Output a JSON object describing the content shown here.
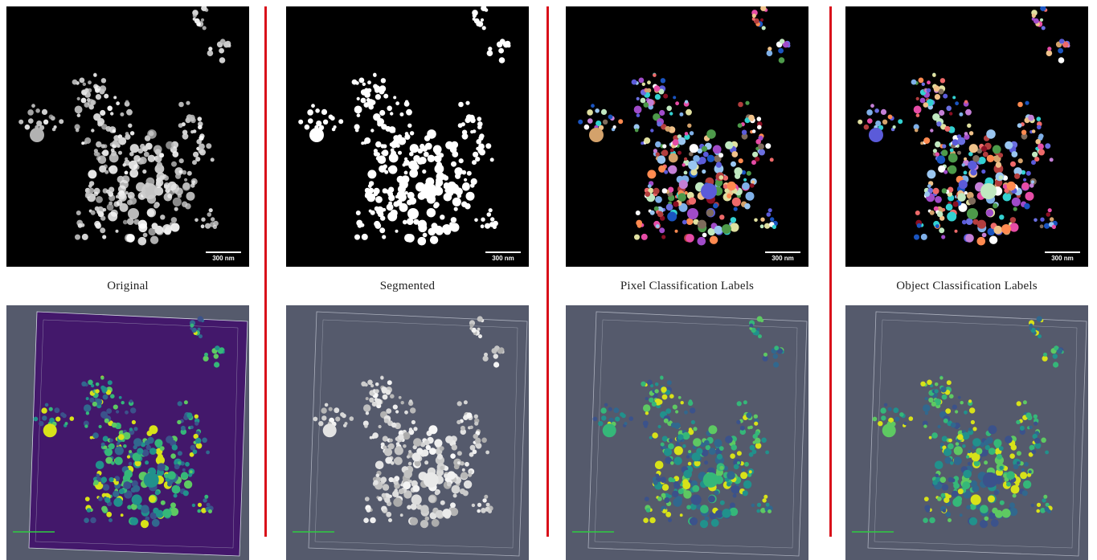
{
  "captions": [
    "Original",
    "Segmented",
    "Pixel Classification Labels",
    "Object Classification Labels"
  ],
  "scale_label": "300 nm",
  "colors": {
    "divider": "#d9101a",
    "render_background": "#555a6c",
    "volume_fill": "#43186b",
    "viridis_yellow": "#d8e219",
    "viridis_green": "#35b779",
    "viridis_teal": "#21918c",
    "viridis_blue": "#31688e"
  },
  "panels": [
    {
      "name": "original",
      "style": "gray"
    },
    {
      "name": "segmented",
      "style": "binary"
    },
    {
      "name": "pixel-classification",
      "style": "labels"
    },
    {
      "name": "object-classification",
      "style": "labels"
    }
  ]
}
